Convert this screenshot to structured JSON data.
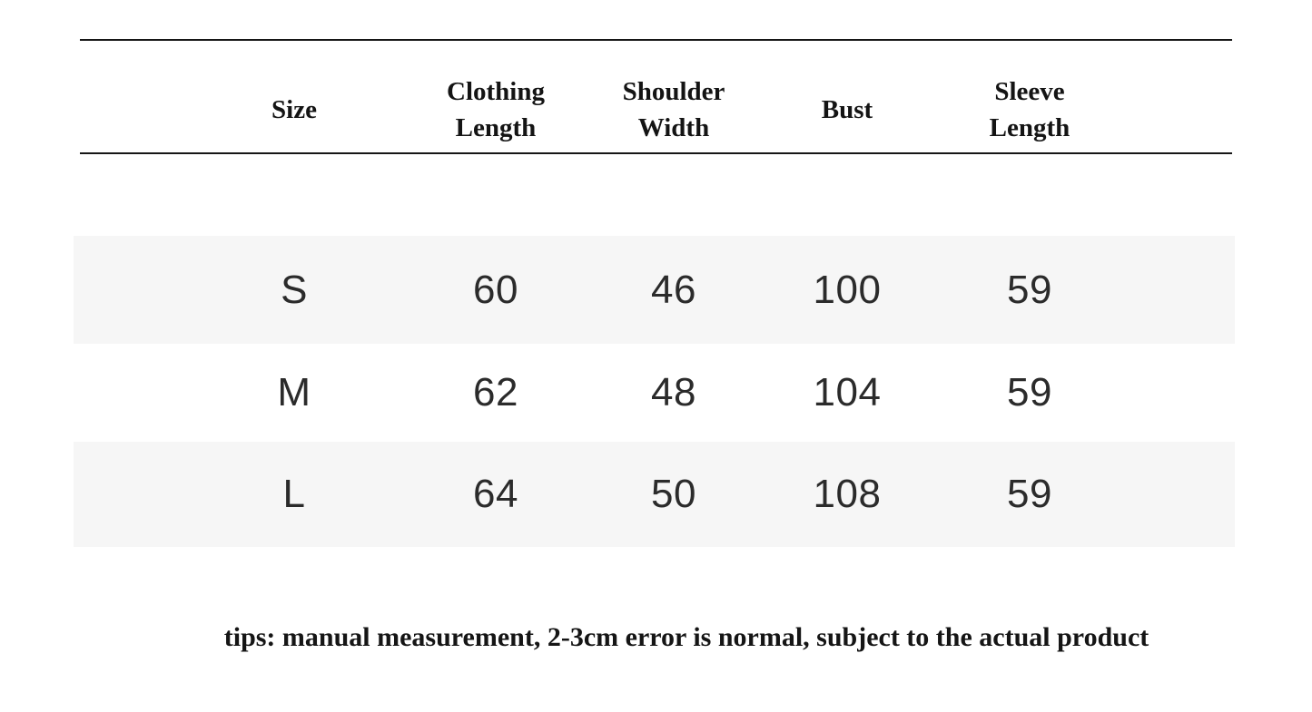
{
  "chart_data": {
    "type": "table",
    "title": "",
    "columns": [
      "Size",
      "Clothing Length",
      "Shoulder Width",
      "Bust",
      "Sleeve Length"
    ],
    "rows": [
      [
        "S",
        "60",
        "46",
        "100",
        "59"
      ],
      [
        "M",
        "62",
        "48",
        "104",
        "59"
      ],
      [
        "L",
        "64",
        "50",
        "108",
        "59"
      ]
    ],
    "note": "tips: manual measurement, 2-3cm error is normal, subject to the actual product",
    "layout": {
      "striped_row_sizes": [
        "S",
        "L"
      ],
      "grid": "horizontal rules above and below header only"
    }
  },
  "colors": {
    "background": "#ffffff",
    "row_stripe": "#f6f6f6",
    "rule": "#161616",
    "header_text": "#141414",
    "data_text": "#2b2b2b"
  }
}
